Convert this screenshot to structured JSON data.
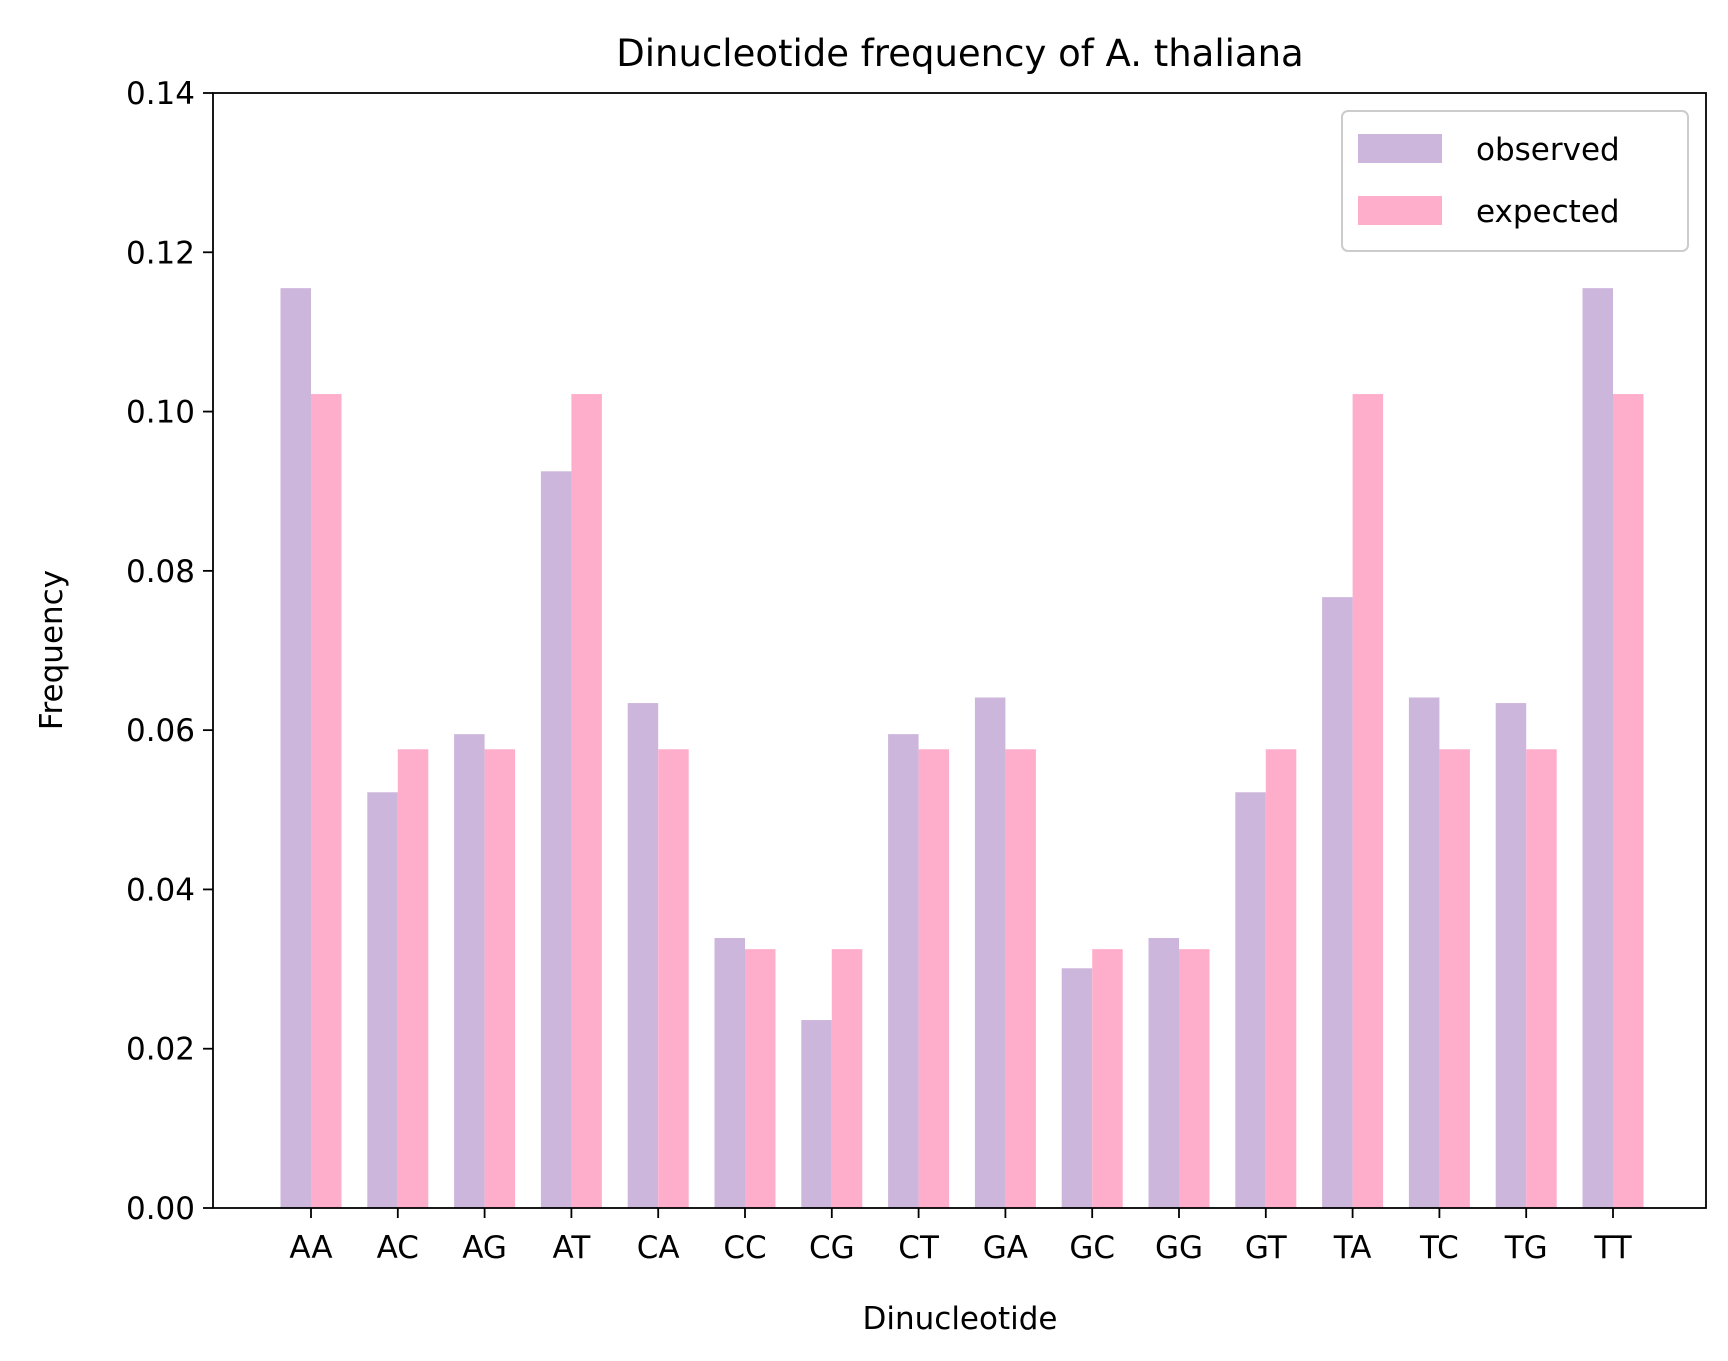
{
  "chart_data": {
    "type": "bar",
    "title": "Dinucleotide frequency of A. thaliana",
    "xlabel": "Dinucleotide",
    "ylabel": "Frequency",
    "ylim": [
      0,
      0.14
    ],
    "yticks": [
      "0.00",
      "0.02",
      "0.04",
      "0.06",
      "0.08",
      "0.10",
      "0.12",
      "0.14"
    ],
    "grid": false,
    "legend_position": "top-right",
    "categories": [
      "AA",
      "AC",
      "AG",
      "AT",
      "CA",
      "CC",
      "CG",
      "CT",
      "GA",
      "GC",
      "GG",
      "GT",
      "TA",
      "TC",
      "TG",
      "TT"
    ],
    "series": [
      {
        "name": "observed",
        "color": "#cdb6dc",
        "values": [
          0.1155,
          0.0522,
          0.0595,
          0.0925,
          0.0634,
          0.0339,
          0.0236,
          0.0595,
          0.0641,
          0.0301,
          0.0339,
          0.0522,
          0.0767,
          0.0641,
          0.0634,
          0.1155
        ]
      },
      {
        "name": "expected",
        "color": "#feaecb",
        "values": [
          0.1022,
          0.0576,
          0.0576,
          0.1022,
          0.0576,
          0.0325,
          0.0325,
          0.0576,
          0.0576,
          0.0325,
          0.0325,
          0.0576,
          0.1022,
          0.0576,
          0.0576,
          0.1022
        ]
      }
    ]
  }
}
